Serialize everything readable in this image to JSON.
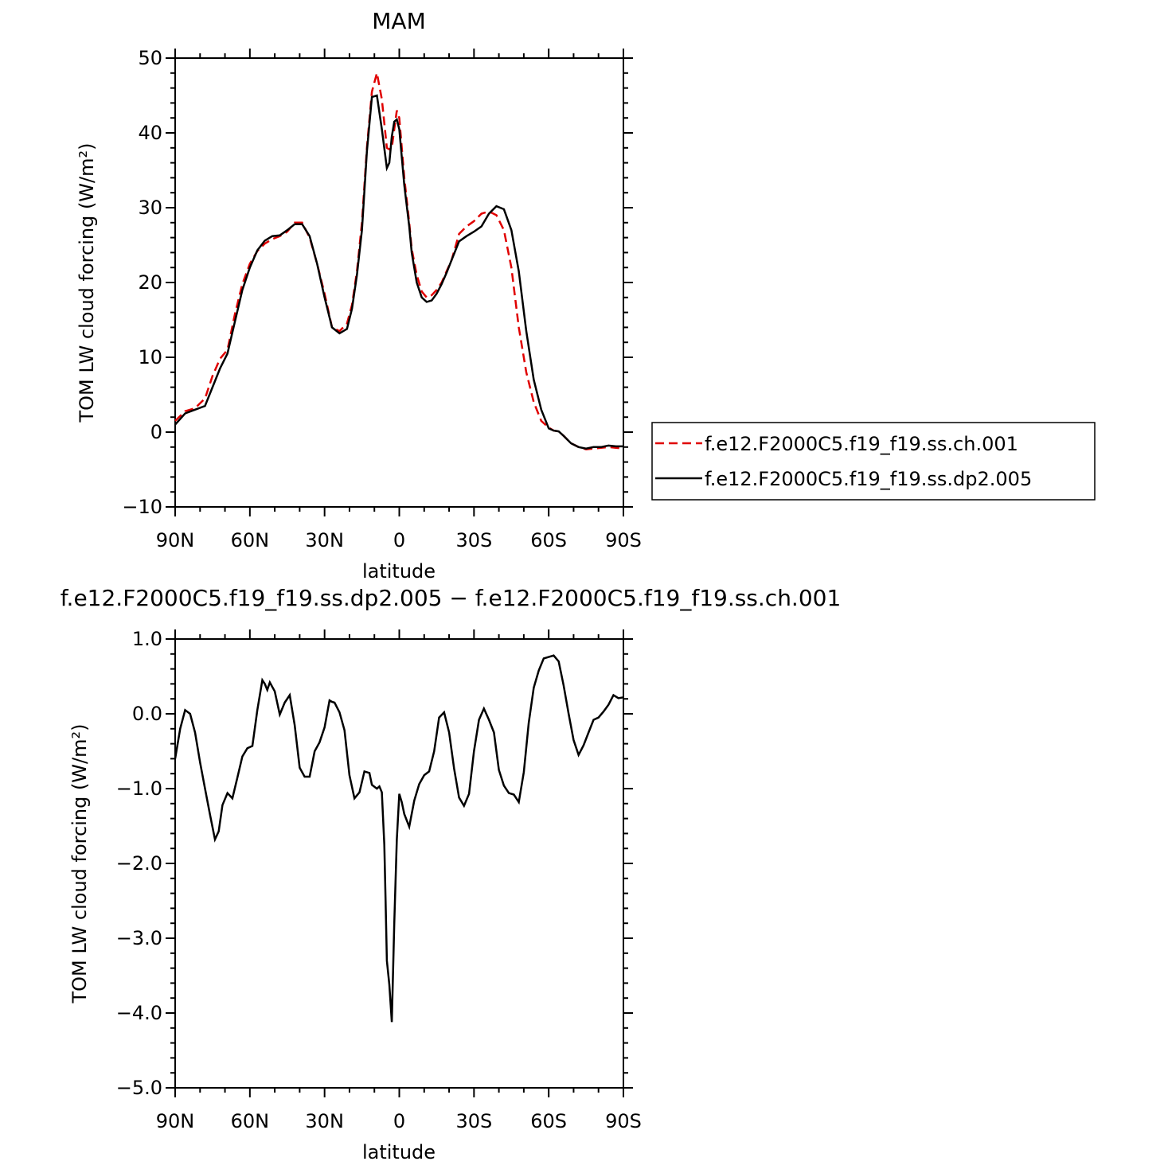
{
  "chart_data": [
    {
      "type": "line",
      "title": "MAM",
      "xlabel": "latitude",
      "ylabel": "TOM LW cloud forcing (W/m²)",
      "xlim": [
        90,
        -90
      ],
      "ylim": [
        -10,
        50
      ],
      "x_ticks": [
        90,
        60,
        30,
        0,
        -30,
        -60,
        -90
      ],
      "x_tick_labels": [
        "90N",
        "60N",
        "30N",
        "0",
        "30S",
        "60S",
        "90S"
      ],
      "y_ticks": [
        -10,
        0,
        10,
        20,
        30,
        40,
        50
      ],
      "y_tick_labels": [
        "−10",
        "0",
        "10",
        "20",
        "30",
        "40",
        "50"
      ],
      "legend": "right",
      "series": [
        {
          "name": "f.e12.F2000C5.f19_f19.ss.ch.001",
          "color": "#e00000",
          "style": "dashed",
          "x": [
            90,
            86,
            82,
            78,
            75,
            72,
            69,
            66,
            63,
            60,
            57,
            54,
            51,
            48,
            45,
            42,
            39,
            36,
            33,
            30,
            27,
            24,
            21,
            19,
            17,
            15,
            13,
            11,
            9,
            7,
            5,
            4,
            3,
            2,
            1,
            0,
            -2,
            -4,
            -5,
            -7,
            -9,
            -11,
            -13,
            -15,
            -17,
            -19,
            -21,
            -24,
            -27,
            -30,
            -33,
            -36,
            -39,
            -42,
            -45,
            -48,
            -51,
            -54,
            -57,
            -60,
            -62,
            -64,
            -66,
            -69,
            -72,
            -75,
            -78,
            -81,
            -84,
            -87,
            -90
          ],
          "y": [
            1.5,
            2.8,
            3.2,
            4.5,
            7.5,
            9.8,
            11.0,
            15.8,
            19.8,
            22.5,
            24.2,
            25.2,
            25.8,
            26.2,
            26.8,
            28.0,
            28.0,
            26.0,
            22.5,
            18.5,
            14.0,
            13.5,
            14.5,
            17.0,
            21.5,
            28.0,
            38.0,
            45.5,
            48.0,
            44.5,
            38.0,
            37.8,
            38.0,
            40.5,
            43.0,
            42.0,
            34.0,
            28.0,
            24.5,
            21.0,
            18.8,
            18.0,
            18.3,
            19.0,
            20.0,
            21.5,
            23.0,
            26.5,
            27.5,
            28.2,
            29.2,
            29.5,
            29.0,
            27.0,
            22.0,
            14.0,
            8.0,
            4.0,
            1.5,
            0.6,
            0.2,
            0.1,
            -0.5,
            -1.5,
            -2.0,
            -2.3,
            -2.2,
            -2.1,
            -2.0,
            -2.1,
            -2.2
          ]
        },
        {
          "name": "f.e12.F2000C5.f19_f19.ss.dp2.005",
          "color": "#000000",
          "style": "solid",
          "x": [
            90,
            86,
            82,
            78,
            75,
            72,
            69,
            66,
            63,
            60,
            57,
            54,
            51,
            48,
            45,
            42,
            39,
            36,
            33,
            30,
            27,
            24,
            21,
            19,
            17,
            15,
            13,
            11,
            9,
            7,
            5,
            4,
            3,
            2,
            1,
            0,
            -2,
            -4,
            -5,
            -7,
            -9,
            -11,
            -13,
            -15,
            -17,
            -19,
            -21,
            -24,
            -27,
            -30,
            -33,
            -36,
            -39,
            -42,
            -45,
            -48,
            -51,
            -54,
            -57,
            -60,
            -62,
            -64,
            -66,
            -69,
            -72,
            -75,
            -78,
            -81,
            -84,
            -87,
            -90
          ],
          "y": [
            1.0,
            2.5,
            3.0,
            3.5,
            6.0,
            8.5,
            10.5,
            14.8,
            19.0,
            22.0,
            24.3,
            25.6,
            26.2,
            26.3,
            27.0,
            27.8,
            27.8,
            26.2,
            22.5,
            18.0,
            14.0,
            13.2,
            13.8,
            16.5,
            21.0,
            27.0,
            37.5,
            44.8,
            45.0,
            40.5,
            35.3,
            36.0,
            39.5,
            41.5,
            41.8,
            40.5,
            33.0,
            27.5,
            24.0,
            20.0,
            18.0,
            17.4,
            17.6,
            18.5,
            19.8,
            21.3,
            23.0,
            25.5,
            26.2,
            26.8,
            27.5,
            29.2,
            30.2,
            29.8,
            27.0,
            21.5,
            13.5,
            7.0,
            3.0,
            0.5,
            0.2,
            0.1,
            -0.5,
            -1.5,
            -2.0,
            -2.2,
            -2.0,
            -2.0,
            -1.8,
            -1.9,
            -1.9
          ]
        }
      ]
    },
    {
      "type": "line",
      "title": "f.e12.F2000C5.f19_f19.ss.dp2.005 − f.e12.F2000C5.f19_f19.ss.ch.001",
      "xlabel": "latitude",
      "ylabel": "TOM LW cloud forcing (W/m²)",
      "xlim": [
        90,
        -90
      ],
      "ylim": [
        -5.0,
        1.0
      ],
      "x_ticks": [
        90,
        60,
        30,
        0,
        -30,
        -60,
        -90
      ],
      "x_tick_labels": [
        "90N",
        "60N",
        "30N",
        "0",
        "30S",
        "60S",
        "90S"
      ],
      "y_ticks": [
        -5.0,
        -4.0,
        -3.0,
        -2.0,
        -1.0,
        0.0,
        1.0
      ],
      "y_tick_labels": [
        "−5.0",
        "−4.0",
        "−3.0",
        "−2.0",
        "−1.0",
        "0.0",
        "1.0"
      ],
      "grid": false,
      "series": [
        {
          "color": "#000000",
          "style": "solid",
          "x": [
            90,
            88,
            86,
            84,
            82,
            80,
            78,
            76,
            74,
            72.5,
            71,
            69,
            67,
            65,
            63,
            61,
            59,
            57,
            55,
            54,
            53,
            52,
            50,
            48,
            46,
            44,
            42,
            40,
            38,
            36,
            34,
            32,
            30,
            28,
            27,
            26,
            24,
            22,
            20,
            18,
            16,
            14,
            12,
            11,
            9,
            8,
            7,
            6,
            5.5,
            5,
            4,
            3,
            2,
            1,
            0,
            -1,
            -2,
            -4,
            -6,
            -8,
            -10,
            -12,
            -14,
            -16,
            -18,
            -20,
            -22,
            -24,
            -26,
            -28,
            -30,
            -32,
            -34,
            -36,
            -38,
            -40,
            -42,
            -44,
            -46,
            -48,
            -50,
            -52,
            -54,
            -56,
            -58,
            -60,
            -62,
            -64,
            -66,
            -68,
            -70,
            -72,
            -74,
            -76,
            -78,
            -80,
            -82,
            -84,
            -86,
            -88,
            -90
          ],
          "y": [
            -0.6,
            -0.2,
            0.05,
            0.0,
            -0.25,
            -0.65,
            -1.0,
            -1.35,
            -1.68,
            -1.57,
            -1.22,
            -1.06,
            -1.13,
            -0.85,
            -0.57,
            -0.46,
            -0.43,
            0.05,
            0.45,
            0.4,
            0.32,
            0.42,
            0.3,
            -0.01,
            0.15,
            0.25,
            -0.15,
            -0.72,
            -0.84,
            -0.84,
            -0.5,
            -0.38,
            -0.18,
            0.18,
            0.16,
            0.15,
            0.02,
            -0.22,
            -0.82,
            -1.13,
            -1.05,
            -0.77,
            -0.79,
            -0.95,
            -1.0,
            -0.97,
            -1.05,
            -1.75,
            -2.5,
            -3.3,
            -3.62,
            -4.12,
            -2.8,
            -1.68,
            -1.07,
            -1.18,
            -1.34,
            -1.51,
            -1.16,
            -0.94,
            -0.82,
            -0.77,
            -0.5,
            -0.05,
            0.02,
            -0.25,
            -0.73,
            -1.12,
            -1.23,
            -1.07,
            -0.5,
            -0.08,
            0.07,
            -0.08,
            -0.25,
            -0.75,
            -0.96,
            -1.06,
            -1.08,
            -1.18,
            -0.78,
            -0.12,
            0.35,
            0.58,
            0.74,
            0.76,
            0.78,
            0.7,
            0.38,
            0.0,
            -0.35,
            -0.55,
            -0.42,
            -0.25,
            -0.08,
            -0.05,
            0.03,
            0.12,
            0.25,
            0.21,
            0.22
          ]
        }
      ]
    }
  ]
}
